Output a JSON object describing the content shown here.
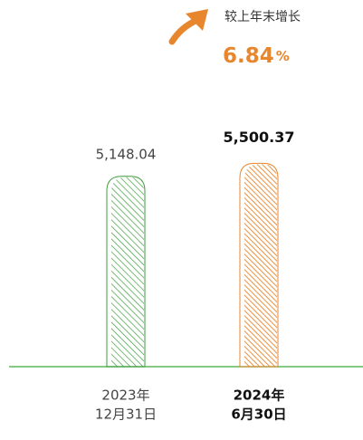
{
  "chart_data": {
    "type": "bar",
    "annotation": {
      "label": "较上年末增长",
      "value": "6.84",
      "unit": "%"
    },
    "categories": [
      [
        "2023年",
        "12月31日"
      ],
      [
        "2024年",
        "6月30日"
      ]
    ],
    "values": [
      5148.04,
      5500.37
    ],
    "value_labels": [
      "5,148.04",
      "5,500.37"
    ],
    "colors": [
      "#3e9c3e",
      "#e8862e"
    ],
    "highlight_index": 1,
    "ylim": [
      0,
      6000
    ]
  }
}
